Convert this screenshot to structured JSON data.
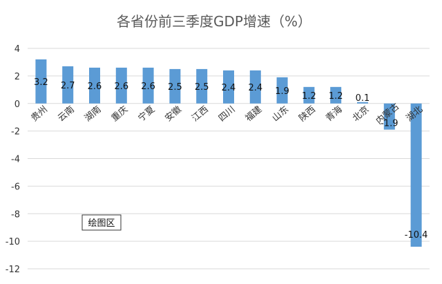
{
  "chart_data": {
    "type": "bar",
    "title": "各省份前三季度GDP增速（%）",
    "categories": [
      "贵州",
      "云南",
      "湖南",
      "重庆",
      "宁夏",
      "安徽",
      "江西",
      "四川",
      "福建",
      "山东",
      "陕西",
      "青海",
      "北京",
      "内蒙古",
      "湖北"
    ],
    "values": [
      3.2,
      2.7,
      2.6,
      2.6,
      2.6,
      2.5,
      2.5,
      2.4,
      2.4,
      1.9,
      1.2,
      1.2,
      0.1,
      -1.9,
      -10.4
    ],
    "data_labels": [
      "3.2",
      "2.7",
      "2.6",
      "2.6",
      "2.6",
      "2.5",
      "2.5",
      "2.4",
      "2.4",
      "1.9",
      "1.2",
      "1.2",
      "0.1",
      "-1.9",
      "-10.4"
    ],
    "ylim": [
      -12,
      4
    ],
    "yticks": [
      4,
      2,
      0,
      -2,
      -4,
      -6,
      -8,
      -10,
      -12
    ],
    "grid": true,
    "bar_color": "#5B9BD5",
    "grid_color": "#D9D9D9",
    "annotation": "绘图区"
  }
}
